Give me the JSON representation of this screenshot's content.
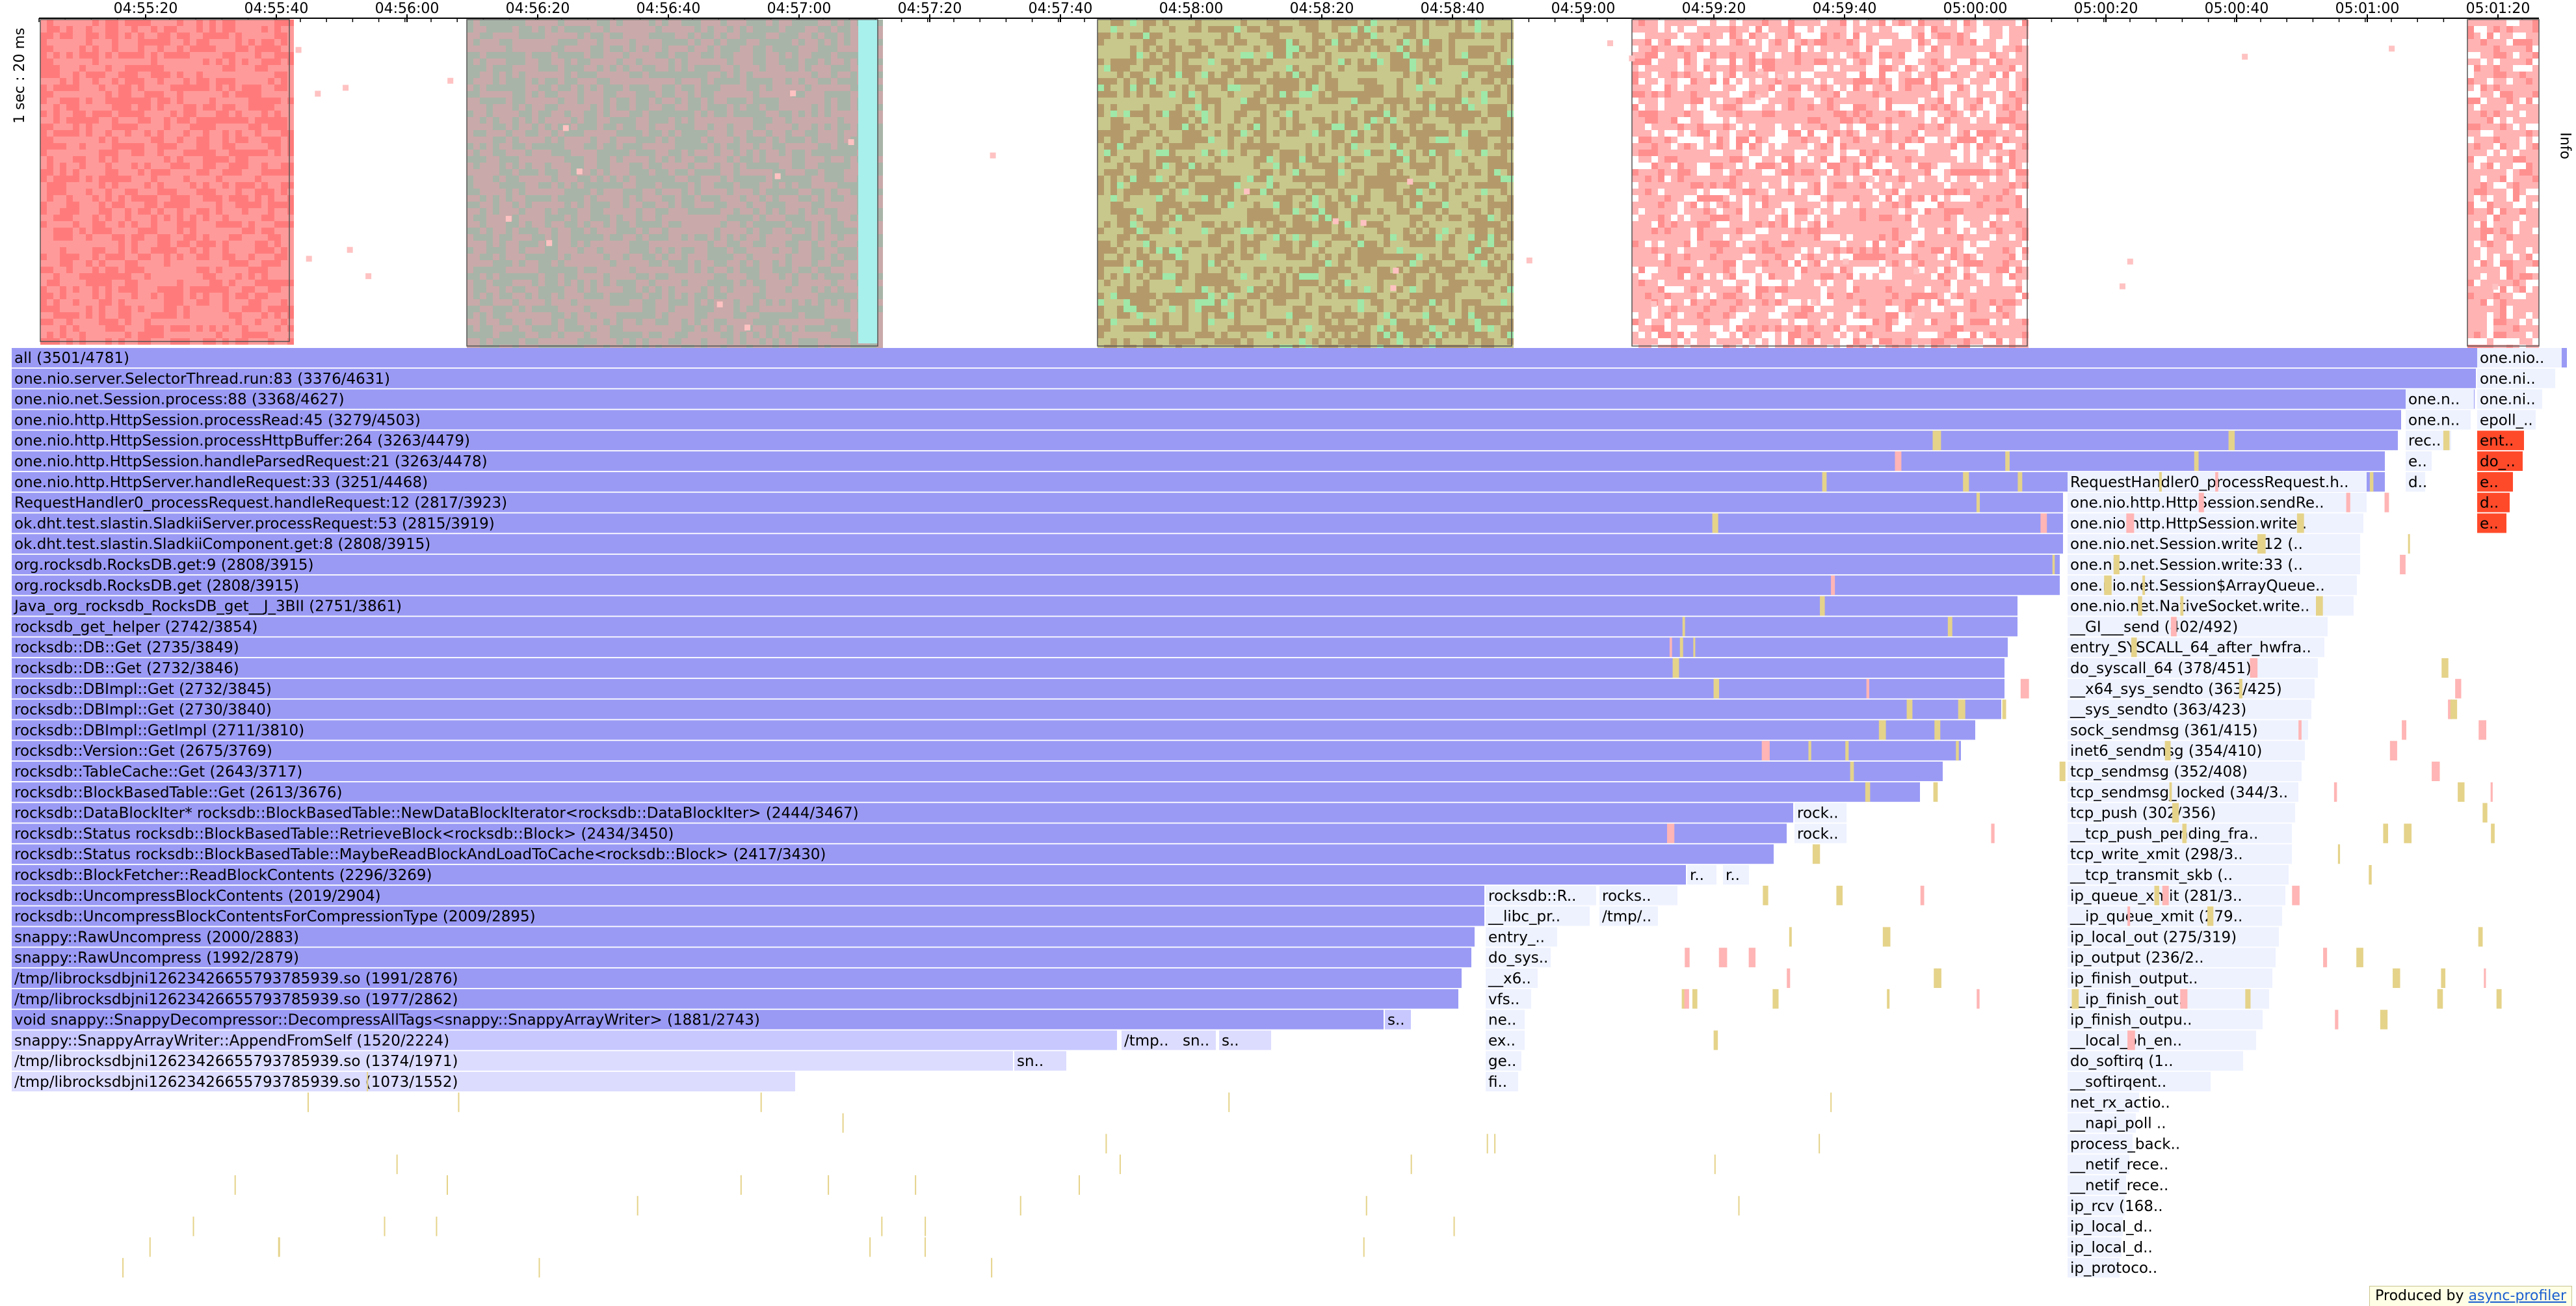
{
  "timeline": {
    "ticks": [
      "04:55:20",
      "04:55:40",
      "04:56:00",
      "04:56:20",
      "04:56:40",
      "04:57:00",
      "04:57:20",
      "04:57:40",
      "04:58:00",
      "04:58:20",
      "04:58:40",
      "04:59:00",
      "04:59:20",
      "04:59:40",
      "05:00:00",
      "05:00:20",
      "05:00:40",
      "05:01:00",
      "05:01:20"
    ],
    "y_label_left": "1 sec : 20 ms",
    "y_label_right": "Info",
    "active_blocks": [
      {
        "name": "block-1",
        "color": "#ff9a9a",
        "alt": "#ff7b7b"
      },
      {
        "name": "block-2",
        "color": "#c9a9a9",
        "alt": "#a8b4a8",
        "edge": "#a8f0ec"
      },
      {
        "name": "block-3",
        "color": "#c8c88c",
        "alt": "#b49a6a",
        "accent": "#9fe8a8"
      },
      {
        "name": "block-4",
        "color": "#ffb3b3",
        "alt": "#ff8f8f"
      },
      {
        "name": "block-5",
        "color": "#ffb3b3",
        "alt": "#ff9090"
      }
    ]
  },
  "flame": {
    "colors": {
      "main": "#9a9af5",
      "pale": "#c8c8ff",
      "light": "#dcdcff",
      "right": "#eef2ff",
      "red": "#ff4a2a",
      "pink": "#ffb5b5",
      "yellow": "#e5d38a"
    },
    "rows": [
      [
        "all (3501/4781)",
        "one.nio.."
      ],
      [
        "one.nio.server.SelectorThread.run:83 (3376/4631)",
        "one.ni.."
      ],
      [
        "one.nio.net.Session.process:88 (3368/4627)",
        "one.n..",
        "one.ni.."
      ],
      [
        "one.nio.http.HttpSession.processRead:45 (3279/4503)",
        "one.n..",
        "epoll_.."
      ],
      [
        "one.nio.http.HttpSession.processHttpBuffer:264 (3263/4479)",
        "rec..",
        "ent.."
      ],
      [
        "one.nio.http.HttpSession.handleParsedRequest:21 (3263/4478)",
        "e..",
        "do_.."
      ],
      [
        "one.nio.http.HttpServer.handleRequest:33 (3251/4468)",
        "RequestHandler0_processRequest.h..",
        "d..",
        "e.."
      ],
      [
        "RequestHandler0_processRequest.handleRequest:12 (2817/3923)",
        "one.nio.http.HttpSession.sendRe..",
        "d.."
      ],
      [
        "ok.dht.test.slastin.SladkiiServer.processRequest:53 (2815/3919)",
        "one.nio.http.HttpSession.write..",
        "e.."
      ],
      [
        "ok.dht.test.slastin.SladkiiComponent.get:8 (2808/3915)",
        "one.nio.net.Session.write:12 (.."
      ],
      [
        "org.rocksdb.RocksDB.get:9 (2808/3915)",
        "one.nio.net.Session.write:33 (.."
      ],
      [
        "org.rocksdb.RocksDB.get (2808/3915)",
        "one.nio.net.Session$ArrayQueue.."
      ],
      [
        "Java_org_rocksdb_RocksDB_get__J_3BII (2751/3861)",
        "one.nio.net.NativeSocket.write.."
      ],
      [
        "rocksdb_get_helper (2742/3854)",
        "__GI___send (402/492)"
      ],
      [
        "rocksdb::DB::Get (2735/3849)",
        "entry_SYSCALL_64_after_hwfra.."
      ],
      [
        "rocksdb::DB::Get (2732/3846)",
        "do_syscall_64 (378/451)"
      ],
      [
        "rocksdb::DBImpl::Get (2732/3845)",
        "__x64_sys_sendto (363/425)"
      ],
      [
        "rocksdb::DBImpl::Get (2730/3840)",
        "__sys_sendto (363/423)"
      ],
      [
        "rocksdb::DBImpl::GetImpl (2711/3810)",
        "sock_sendmsg (361/415)"
      ],
      [
        "rocksdb::Version::Get (2675/3769)",
        "inet6_sendmsg (354/410)"
      ],
      [
        "rocksdb::TableCache::Get (2643/3717)",
        "tcp_sendmsg (352/408)"
      ],
      [
        "rocksdb::BlockBasedTable::Get (2613/3676)",
        "tcp_sendmsg_locked (344/3.."
      ],
      [
        "rocksdb::DataBlockIter* rocksdb::BlockBasedTable::NewDataBlockIterator<rocksdb::DataBlockIter> (2444/3467)",
        "rock..",
        "tcp_push (302/356)"
      ],
      [
        "rocksdb::Status rocksdb::BlockBasedTable::RetrieveBlock<rocksdb::Block> (2434/3450)",
        "rock..",
        "__tcp_push_pending_fra.."
      ],
      [
        "rocksdb::Status rocksdb::BlockBasedTable::MaybeReadBlockAndLoadToCache<rocksdb::Block> (2417/3430)",
        "tcp_write_xmit (298/3.."
      ],
      [
        "rocksdb::BlockFetcher::ReadBlockContents (2296/3269)",
        "r..",
        "r..",
        "__tcp_transmit_skb (.."
      ],
      [
        "rocksdb::UncompressBlockContents (2019/2904)",
        "rocksdb::R..",
        "rocks..",
        "ip_queue_xmit (281/3.."
      ],
      [
        "rocksdb::UncompressBlockContentsForCompressionType (2009/2895)",
        "__libc_pr..",
        "/tmp/..",
        "__ip_queue_xmit (279.."
      ],
      [
        "snappy::RawUncompress (2000/2883)",
        "entry_..",
        "ip_local_out (275/319)"
      ],
      [
        "snappy::RawUncompress (1992/2879)",
        "do_sys..",
        "ip_output (236/2.."
      ],
      [
        "/tmp/librocksdbjni1262342665579378 5939.so (1991/2876)",
        "__x6..",
        "ip_finish_output.."
      ],
      [
        "/tmp/librocksdbjni12623426655793785939.so (1977/2862)",
        "vfs..",
        "__ip_finish_out.."
      ],
      [
        "void snappy::SnappyDecompressor::DecompressAllTags<snappy::SnappyArrayWriter> (1881/2743)",
        "s..",
        "ne..",
        "ip_finish_outpu.."
      ],
      [
        "snappy::SnappyArrayWriter::AppendFromSelf (1520/2224)",
        "/tmp..",
        "sn..",
        "s..",
        "ex..",
        "__local_bh_en.."
      ],
      [
        "/tmp/librocksdbjni12623426655793785939.so (1374/1971)",
        "sn..",
        "ge..",
        "do_softirq (1.."
      ],
      [
        "/tmp/librocksdbjni12623426655793785939.so (1073/1552)",
        "fi..",
        "__softirqent.."
      ],
      [
        "net_rx_actio.."
      ],
      [
        "__napi_poll .."
      ],
      [
        "process_back.."
      ],
      [
        "__netif_rece.."
      ],
      [
        "__netif_rece.."
      ],
      [
        "ip_rcv (168.."
      ],
      [
        "ip_local_d.."
      ],
      [
        "ip_local_d.."
      ],
      [
        "ip_protoco.."
      ]
    ]
  },
  "credit": {
    "prefix": "Produced by ",
    "link": "async-profiler"
  }
}
